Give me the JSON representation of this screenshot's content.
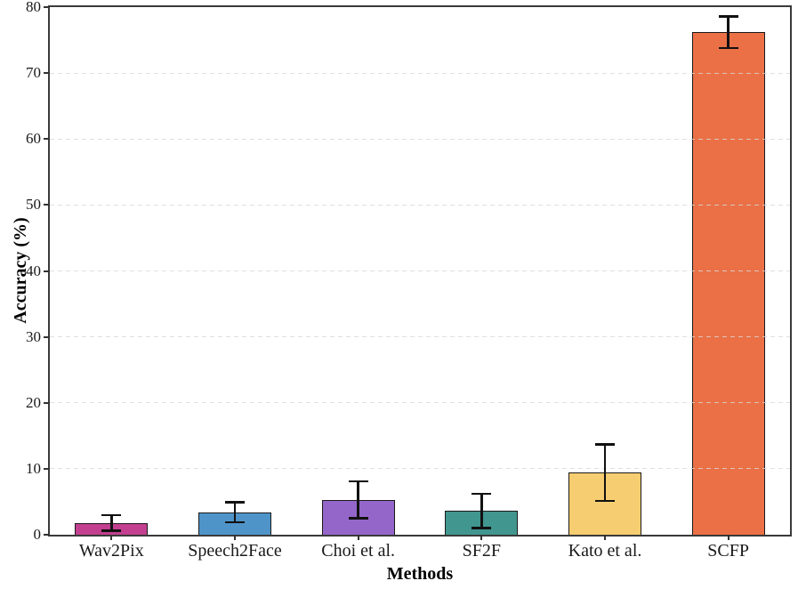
{
  "figure": {
    "background": "#ffffff",
    "spine_color": "#3a3a3a"
  },
  "chart_data": {
    "type": "bar",
    "title": "",
    "xlabel": "Methods",
    "ylabel": "Accuracy (%)",
    "categories": [
      "Wav2Pix",
      "Speech2Face",
      "Choi et al.",
      "SF2F",
      "Kato et al.",
      "SCFP"
    ],
    "values": [
      1.8,
      3.4,
      5.3,
      3.6,
      9.4,
      76.2
    ],
    "errors": [
      1.2,
      1.5,
      2.8,
      2.6,
      4.3,
      2.4
    ],
    "bar_colors": [
      "#c2408f",
      "#4f94c9",
      "#9466c9",
      "#41968f",
      "#f6cd70",
      "#eb7046"
    ],
    "bar_edge_color": "#1a1a1a",
    "error_color": "#111111",
    "ylim": [
      0,
      80
    ],
    "yticks": [
      0,
      10,
      20,
      30,
      40,
      50,
      60,
      70,
      80
    ],
    "grid": "horizontal dashed, drawn above bars, at interior yticks",
    "grid_color": "#d8d8d8",
    "legend_position": "none",
    "bar_width_fraction": 0.59
  }
}
